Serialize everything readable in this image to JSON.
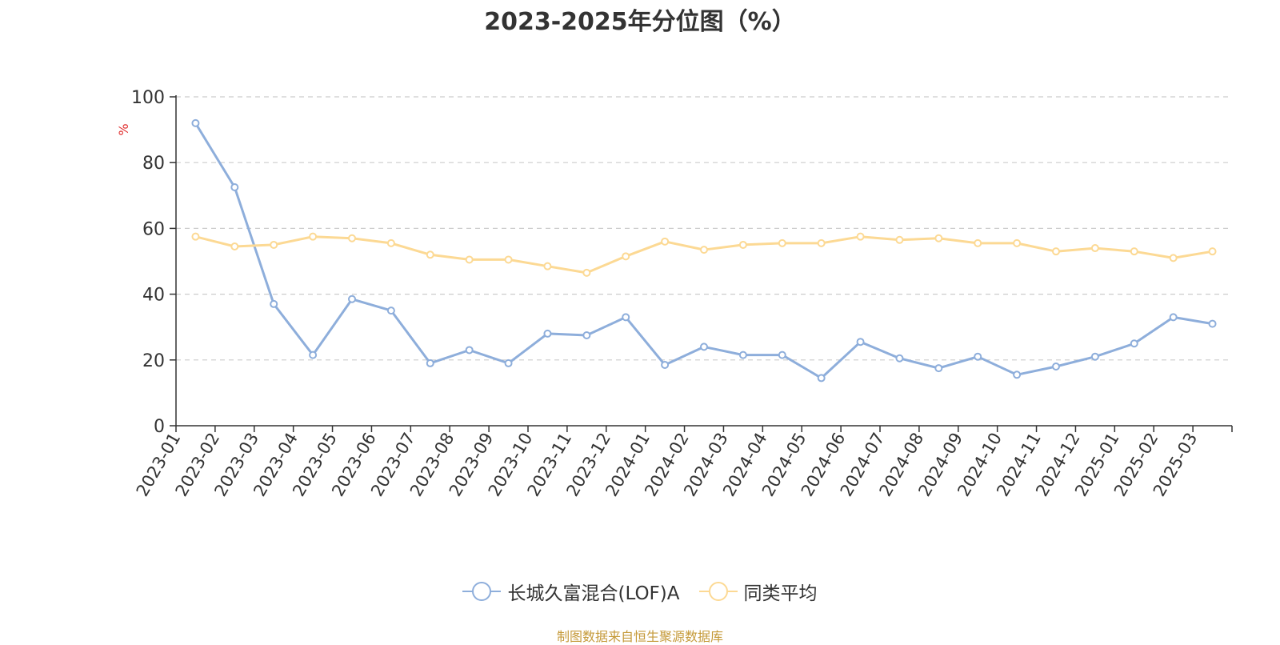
{
  "chart_data": {
    "type": "line",
    "title": "2023-2025年分位图（%）",
    "ylabel": "%",
    "xlabel": "",
    "ylim": [
      0,
      100
    ],
    "yticks": [
      0,
      20,
      40,
      60,
      80,
      100
    ],
    "grid": true,
    "legend_position": "bottom-center",
    "categories": [
      "2023-01",
      "2023-02",
      "2023-03",
      "2023-04",
      "2023-05",
      "2023-06",
      "2023-07",
      "2023-08",
      "2023-09",
      "2023-10",
      "2023-11",
      "2023-12",
      "2024-01",
      "2024-02",
      "2024-03",
      "2024-04",
      "2024-05",
      "2024-06",
      "2024-07",
      "2024-08",
      "2024-09",
      "2024-10",
      "2024-11",
      "2024-12",
      "2025-01",
      "2025-02",
      "2025-03"
    ],
    "series": [
      {
        "name": "长城久富混合(LOF)A",
        "color": "#8eaedb",
        "values": [
          92,
          72.5,
          37,
          21.5,
          38.5,
          35,
          19,
          23,
          19,
          28,
          27.5,
          33,
          18.5,
          24,
          21.5,
          21.5,
          14.5,
          25.5,
          20.5,
          17.5,
          21,
          15.5,
          18,
          21,
          25,
          33,
          31
        ]
      },
      {
        "name": "同类平均",
        "color": "#fcd994",
        "values": [
          57.5,
          54.5,
          55,
          57.5,
          57,
          55.5,
          52,
          50.5,
          50.5,
          48.5,
          46.5,
          51.5,
          56,
          53.5,
          55,
          55.5,
          55.5,
          57.5,
          56.5,
          57,
          55.5,
          55.5,
          53,
          54,
          53,
          51,
          53
        ]
      }
    ]
  },
  "source_note": "制图数据来自恒生聚源数据库",
  "colors": {
    "axis": "#333333",
    "grid": "#cccccc",
    "ylabel": "#e03030",
    "source": "#c59a3a"
  }
}
